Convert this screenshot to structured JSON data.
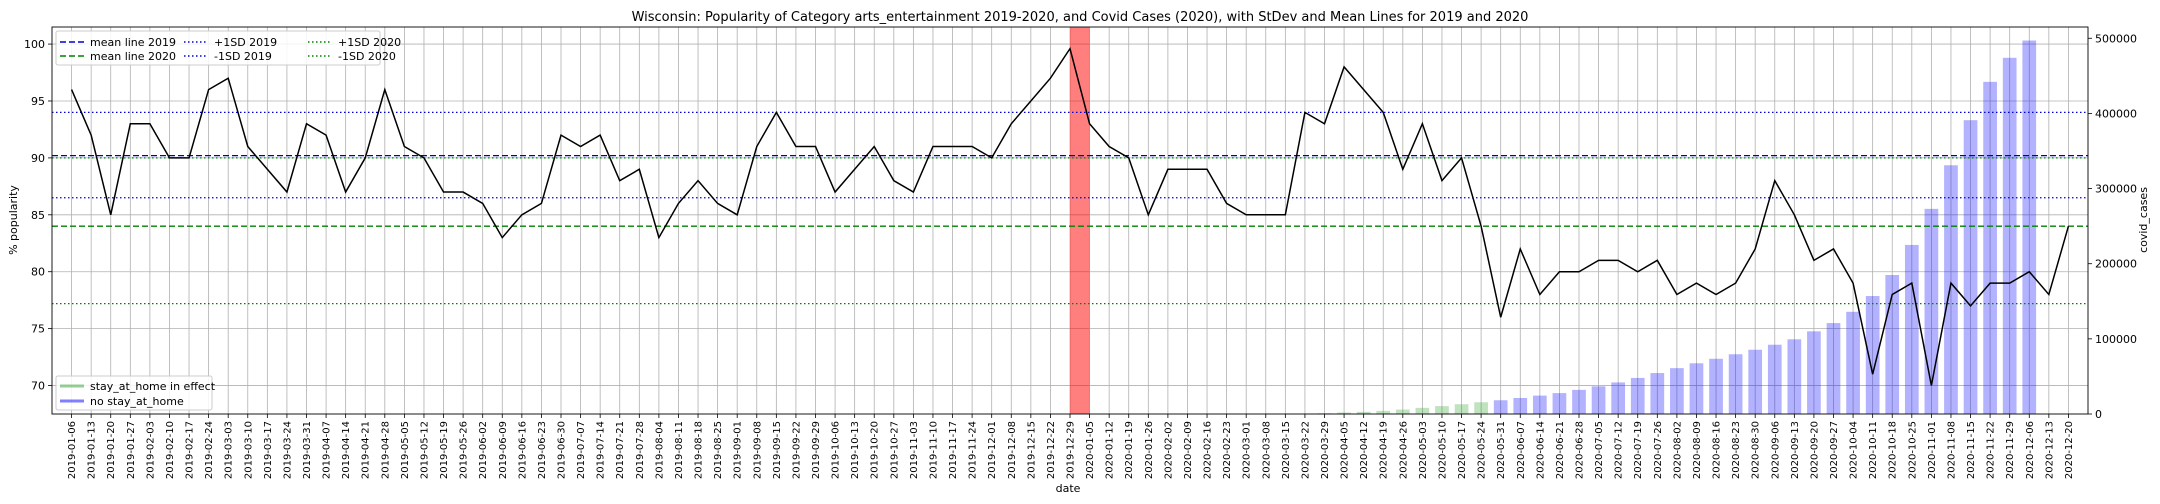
{
  "chart_data": {
    "type": "line",
    "title": "Wisconsin: Popularity of Category arts_entertainment 2019-2020, and Covid Cases (2020), with StDev and Mean Lines for 2019 and 2020",
    "xlabel": "date",
    "ylabel": "% popularity",
    "y2label": "covid_cases",
    "ylim": [
      67.5,
      101.5
    ],
    "y2lim": [
      0,
      515000
    ],
    "yticks": [
      70,
      75,
      80,
      85,
      90,
      95,
      100
    ],
    "y2ticks": [
      0,
      100000,
      200000,
      300000,
      400000,
      500000
    ],
    "grid": true,
    "x": [
      "2019-01-06",
      "2019-01-13",
      "2019-01-20",
      "2019-01-27",
      "2019-02-03",
      "2019-02-10",
      "2019-02-17",
      "2019-02-24",
      "2019-03-03",
      "2019-03-10",
      "2019-03-17",
      "2019-03-24",
      "2019-03-31",
      "2019-04-07",
      "2019-04-14",
      "2019-04-21",
      "2019-04-28",
      "2019-05-05",
      "2019-05-12",
      "2019-05-19",
      "2019-05-26",
      "2019-06-02",
      "2019-06-09",
      "2019-06-16",
      "2019-06-23",
      "2019-06-30",
      "2019-07-07",
      "2019-07-14",
      "2019-07-21",
      "2019-07-28",
      "2019-08-04",
      "2019-08-11",
      "2019-08-18",
      "2019-08-25",
      "2019-09-01",
      "2019-09-08",
      "2019-09-15",
      "2019-09-22",
      "2019-09-29",
      "2019-10-06",
      "2019-10-13",
      "2019-10-20",
      "2019-10-27",
      "2019-11-03",
      "2019-11-10",
      "2019-11-17",
      "2019-11-24",
      "2019-12-01",
      "2019-12-08",
      "2019-12-15",
      "2019-12-22",
      "2019-12-29",
      "2020-01-05",
      "2020-01-12",
      "2020-01-19",
      "2020-01-26",
      "2020-02-02",
      "2020-02-09",
      "2020-02-16",
      "2020-02-23",
      "2020-03-01",
      "2020-03-08",
      "2020-03-15",
      "2020-03-22",
      "2020-03-29",
      "2020-04-05",
      "2020-04-12",
      "2020-04-19",
      "2020-04-26",
      "2020-05-03",
      "2020-05-10",
      "2020-05-17",
      "2020-05-24",
      "2020-05-31",
      "2020-06-07",
      "2020-06-14",
      "2020-06-21",
      "2020-06-28",
      "2020-07-05",
      "2020-07-12",
      "2020-07-19",
      "2020-07-26",
      "2020-08-02",
      "2020-08-09",
      "2020-08-16",
      "2020-08-23",
      "2020-08-30",
      "2020-09-06",
      "2020-09-13",
      "2020-09-20",
      "2020-09-27",
      "2020-10-04",
      "2020-10-11",
      "2020-10-18",
      "2020-10-25",
      "2020-11-01",
      "2020-11-08",
      "2020-11-15",
      "2020-11-22",
      "2020-11-29",
      "2020-12-06",
      "2020-12-13",
      "2020-12-20"
    ],
    "series": [
      {
        "name": "% popularity",
        "color": "#000000",
        "values": [
          96,
          92,
          85,
          93,
          93,
          90,
          90,
          96,
          97,
          91,
          89,
          87,
          93,
          92,
          87,
          90,
          96,
          91,
          90,
          87,
          87,
          86,
          83,
          85,
          86,
          92,
          91,
          92,
          88,
          89,
          83,
          86,
          88,
          86,
          85,
          91,
          94,
          91,
          91,
          87,
          89,
          91,
          88,
          87,
          91,
          91,
          91,
          90,
          93,
          95,
          97,
          99.6,
          93,
          91,
          90,
          85,
          89,
          89,
          89,
          86,
          85,
          85,
          85,
          94,
          93,
          98,
          96,
          94,
          89,
          93,
          88,
          90,
          84,
          76,
          82,
          78,
          80,
          80,
          81,
          81,
          80,
          81,
          78,
          79,
          78,
          79,
          82,
          88,
          85,
          81,
          82,
          79,
          71,
          78,
          79,
          70,
          79,
          77,
          79,
          79,
          80,
          78,
          84
        ]
      }
    ],
    "covid_cases": {
      "first_date": "2020-03-29",
      "values": [
        1000,
        1900,
        2900,
        4200,
        5900,
        8200,
        10500,
        13000,
        15600,
        18300,
        21300,
        24500,
        27800,
        32100,
        36800,
        42000,
        48000,
        54500,
        61000,
        67500,
        73500,
        79500,
        85500,
        92200,
        99400,
        110000,
        121000,
        136000,
        157000,
        185000,
        225000,
        273000,
        331000,
        391000,
        442000,
        474000,
        497000
      ],
      "stay_at_home_last_date": "2020-05-24",
      "stay_at_home_color": "#2ca02c",
      "no_stay_at_home_color": "#0000ff"
    },
    "highlight": {
      "from": "2019-12-29",
      "to": "2020-01-05",
      "color": "#ff0000"
    },
    "reference_lines": [
      {
        "name": "mean line 2019",
        "value": 90.2,
        "color": "#0000cd",
        "style": "dashed"
      },
      {
        "name": "mean line 2020",
        "value": 84.0,
        "color": "#008000",
        "style": "dashed"
      },
      {
        "name": "+1SD 2019",
        "value": 94.0,
        "color": "#0000cd",
        "style": "dotted"
      },
      {
        "name": "-1SD 2019",
        "value": 86.5,
        "color": "#0000cd",
        "style": "dotted"
      },
      {
        "name": "+1SD 2020",
        "value": 90.0,
        "color": "#008000",
        "style": "dotted"
      },
      {
        "name": "-1SD 2020",
        "value": 77.2,
        "color": "#008000",
        "style": "dotted"
      }
    ],
    "legend_top": {
      "placement": "top-left",
      "entries": [
        "mean line 2019",
        "mean line 2020",
        "+1SD 2019",
        "-1SD 2019",
        "+1SD 2020",
        "-1SD 2020"
      ]
    },
    "legend_bottom": {
      "placement": "bottom-left",
      "entries": [
        {
          "label": "stay_at_home in effect",
          "color": "#2ca02c"
        },
        {
          "label": "no stay_at_home",
          "color": "#0000ff"
        }
      ]
    }
  }
}
